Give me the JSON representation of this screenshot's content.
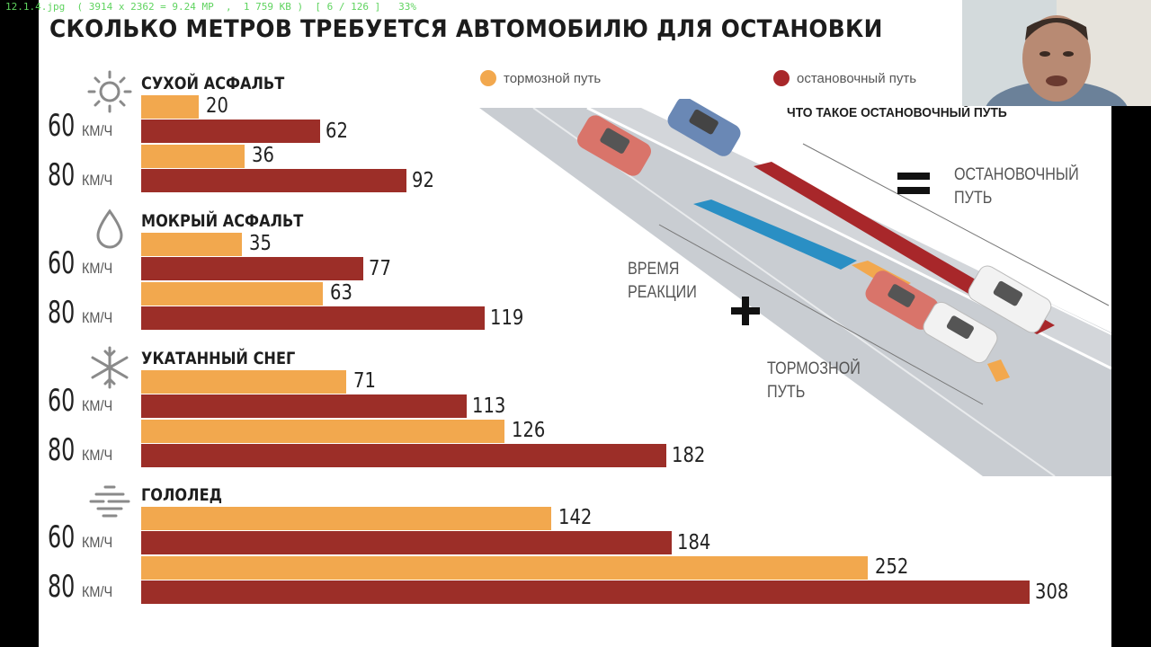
{
  "viewer": {
    "info": "12.1.4.jpg  ( 3914 x 2362 = 9.24 MP  ,  1 759 KB )  [ 6 / 126 ]   33%"
  },
  "slide": {
    "title": "СКОЛЬКО МЕТРОВ ТРЕБУЕТСЯ АВТОМОБИЛЮ ДЛЯ ОСТАНОВКИ",
    "legend": {
      "braking": "тормозной путь",
      "stopping": "остановочный путь"
    },
    "diagram": {
      "heading": "ЧТО ТАКОЕ ОСТАНОВОЧНЫЙ ПУТЬ",
      "equals_line1": "ОСТАНОВОЧНЫЙ",
      "equals_line2": "ПУТЬ",
      "reaction_line1": "ВРЕМЯ",
      "reaction_line2": "РЕАКЦИИ",
      "braking_line1": "ТОРМОЗНОЙ",
      "braking_line2": "ПУТЬ"
    },
    "unit": "КМ/Ч",
    "speeds": [
      "60",
      "80"
    ],
    "colors": {
      "braking": "#f2a84e",
      "stopping": "#9c2e28",
      "reaction": "#2a8fc4"
    }
  },
  "chart_data": {
    "type": "bar",
    "orientation": "horizontal",
    "title": "СКОЛЬКО МЕТРОВ ТРЕБУЕТСЯ АВТОМОБИЛЮ ДЛЯ ОСТАНОВКИ",
    "unit": "м",
    "legend": [
      "тормозной путь",
      "остановочный путь"
    ],
    "legend_position": "top",
    "groups": [
      {
        "surface": "СУХОЙ АСФАЛЬТ",
        "icon": "sun-icon",
        "rows": [
          {
            "speed": "60 КМ/Ч",
            "braking": 20,
            "stopping": 62
          },
          {
            "speed": "80 КМ/Ч",
            "braking": 36,
            "stopping": 92
          }
        ]
      },
      {
        "surface": "МОКРЫЙ АСФАЛЬТ",
        "icon": "drop-icon",
        "rows": [
          {
            "speed": "60 КМ/Ч",
            "braking": 35,
            "stopping": 77
          },
          {
            "speed": "80 КМ/Ч",
            "braking": 63,
            "stopping": 119
          }
        ]
      },
      {
        "surface": "УКАТАННЫЙ СНЕГ",
        "icon": "snowflake-icon",
        "rows": [
          {
            "speed": "60 КМ/Ч",
            "braking": 71,
            "stopping": 113
          },
          {
            "speed": "80 КМ/Ч",
            "braking": 126,
            "stopping": 182
          }
        ]
      },
      {
        "surface": "ГОЛОЛЕД",
        "icon": "ice-icon",
        "rows": [
          {
            "speed": "60 КМ/Ч",
            "braking": 142,
            "stopping": 184
          },
          {
            "speed": "80 КМ/Ч",
            "braking": 252,
            "stopping": 308
          }
        ]
      }
    ],
    "grid": false
  }
}
